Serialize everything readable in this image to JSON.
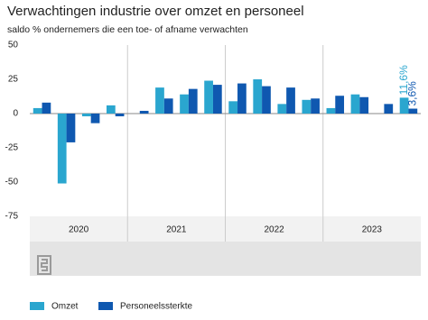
{
  "chart_data": {
    "type": "bar",
    "title": "Verwachtingen industrie over omzet en personeel",
    "subtitle": "saldo % ondernemers die een toe- of afname verwachten",
    "categories": [
      null,
      null,
      null,
      null,
      null,
      null,
      null,
      null,
      null,
      null,
      null,
      null,
      null,
      null,
      null,
      null
    ],
    "groups": [
      "2020",
      "2021",
      "2022",
      "2023"
    ],
    "series": [
      {
        "name": "Omzet",
        "color": "#2aa6cf",
        "values": [
          4,
          -51,
          -2,
          6,
          0,
          19,
          14,
          24,
          9,
          25,
          7,
          10,
          4,
          14,
          0,
          11.6
        ],
        "value_labels": [
          null,
          null,
          null,
          null,
          null,
          null,
          null,
          null,
          null,
          null,
          null,
          null,
          null,
          null,
          null,
          "11,6%"
        ]
      },
      {
        "name": "Personeelssterkte",
        "color": "#0f58b0",
        "values": [
          8,
          -21,
          -7,
          -2,
          2,
          11,
          18,
          21,
          22,
          20,
          19,
          11,
          13,
          12,
          7,
          3.6
        ],
        "value_labels": [
          null,
          null,
          null,
          null,
          null,
          null,
          null,
          null,
          null,
          null,
          null,
          null,
          null,
          null,
          null,
          "3,6%"
        ]
      }
    ],
    "ylim": [
      -75,
      50
    ],
    "yticks": [
      -75,
      -50,
      -25,
      0,
      25,
      50
    ]
  }
}
